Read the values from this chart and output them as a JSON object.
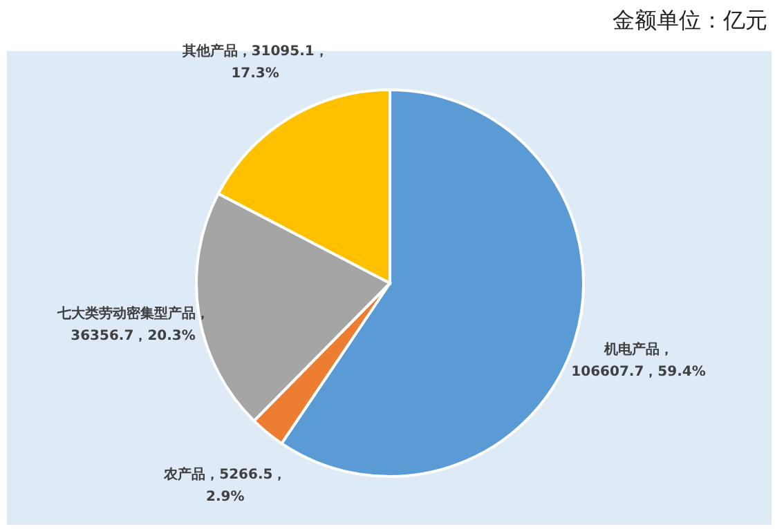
{
  "chart_data": {
    "type": "pie",
    "categories": [
      "机电产品",
      "农产品",
      "七大类劳动密集型产品",
      "其他产品"
    ],
    "values": [
      106607.7,
      5266.5,
      36356.7,
      31095.1
    ],
    "colors": [
      "#5b9bd5",
      "#ed7d31",
      "#a5a5a5",
      "#ffc000"
    ],
    "value_labels": [
      "，\n106607.7，59.4%",
      "，5266.5，\n2.9%",
      "，\n36356.7，20.3%",
      "，31095.1，\n17.3%"
    ],
    "annotations": [
      "金额单位：亿元"
    ]
  }
}
